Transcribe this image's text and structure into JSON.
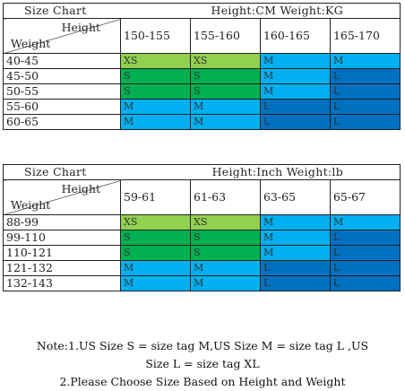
{
  "table_cm": {
    "title": "Size Chart",
    "units": "Height:CM Weight:KG",
    "corner_height": "Height",
    "corner_weight": "Weight",
    "heights": [
      "150-155",
      "155-160",
      "160-165",
      "165-170"
    ],
    "rows": [
      {
        "weight": "40-45",
        "cells": [
          "XS",
          "XS",
          "M",
          "M"
        ]
      },
      {
        "weight": "45-50",
        "cells": [
          "S",
          "S",
          "M",
          "L"
        ]
      },
      {
        "weight": "50-55",
        "cells": [
          "S",
          "S",
          "M",
          "L"
        ]
      },
      {
        "weight": "55-60",
        "cells": [
          "M",
          "M",
          "L",
          "L"
        ]
      },
      {
        "weight": "60-65",
        "cells": [
          "M",
          "M",
          "L",
          "L"
        ]
      }
    ]
  },
  "table_inch": {
    "title": "Size Chart",
    "units": "Height:Inch Weight:lb",
    "corner_height": "Height",
    "corner_weight": "Weight",
    "heights": [
      "59-61",
      "61-63",
      "63-65",
      "65-67"
    ],
    "rows": [
      {
        "weight": "88-99",
        "cells": [
          "XS",
          "XS",
          "M",
          "M"
        ]
      },
      {
        "weight": "99-110",
        "cells": [
          "S",
          "S",
          "M",
          "L"
        ]
      },
      {
        "weight": "110-121",
        "cells": [
          "S",
          "S",
          "M",
          "L"
        ]
      },
      {
        "weight": "121-132",
        "cells": [
          "M",
          "M",
          "L",
          "L"
        ]
      },
      {
        "weight": "132-143",
        "cells": [
          "M",
          "M",
          "L",
          "L"
        ]
      }
    ]
  },
  "size_colors": {
    "XS": "#92d050",
    "S": "#00b050",
    "M": "#00b0f0",
    "L": "#0070c0"
  },
  "note": {
    "line1": "Note:1.US Size S = size tag M,US Size M = size tag L ,US",
    "line2": "Size L = size tag XL",
    "line3": "2.Please Choose Size Based on Height and Weight"
  }
}
